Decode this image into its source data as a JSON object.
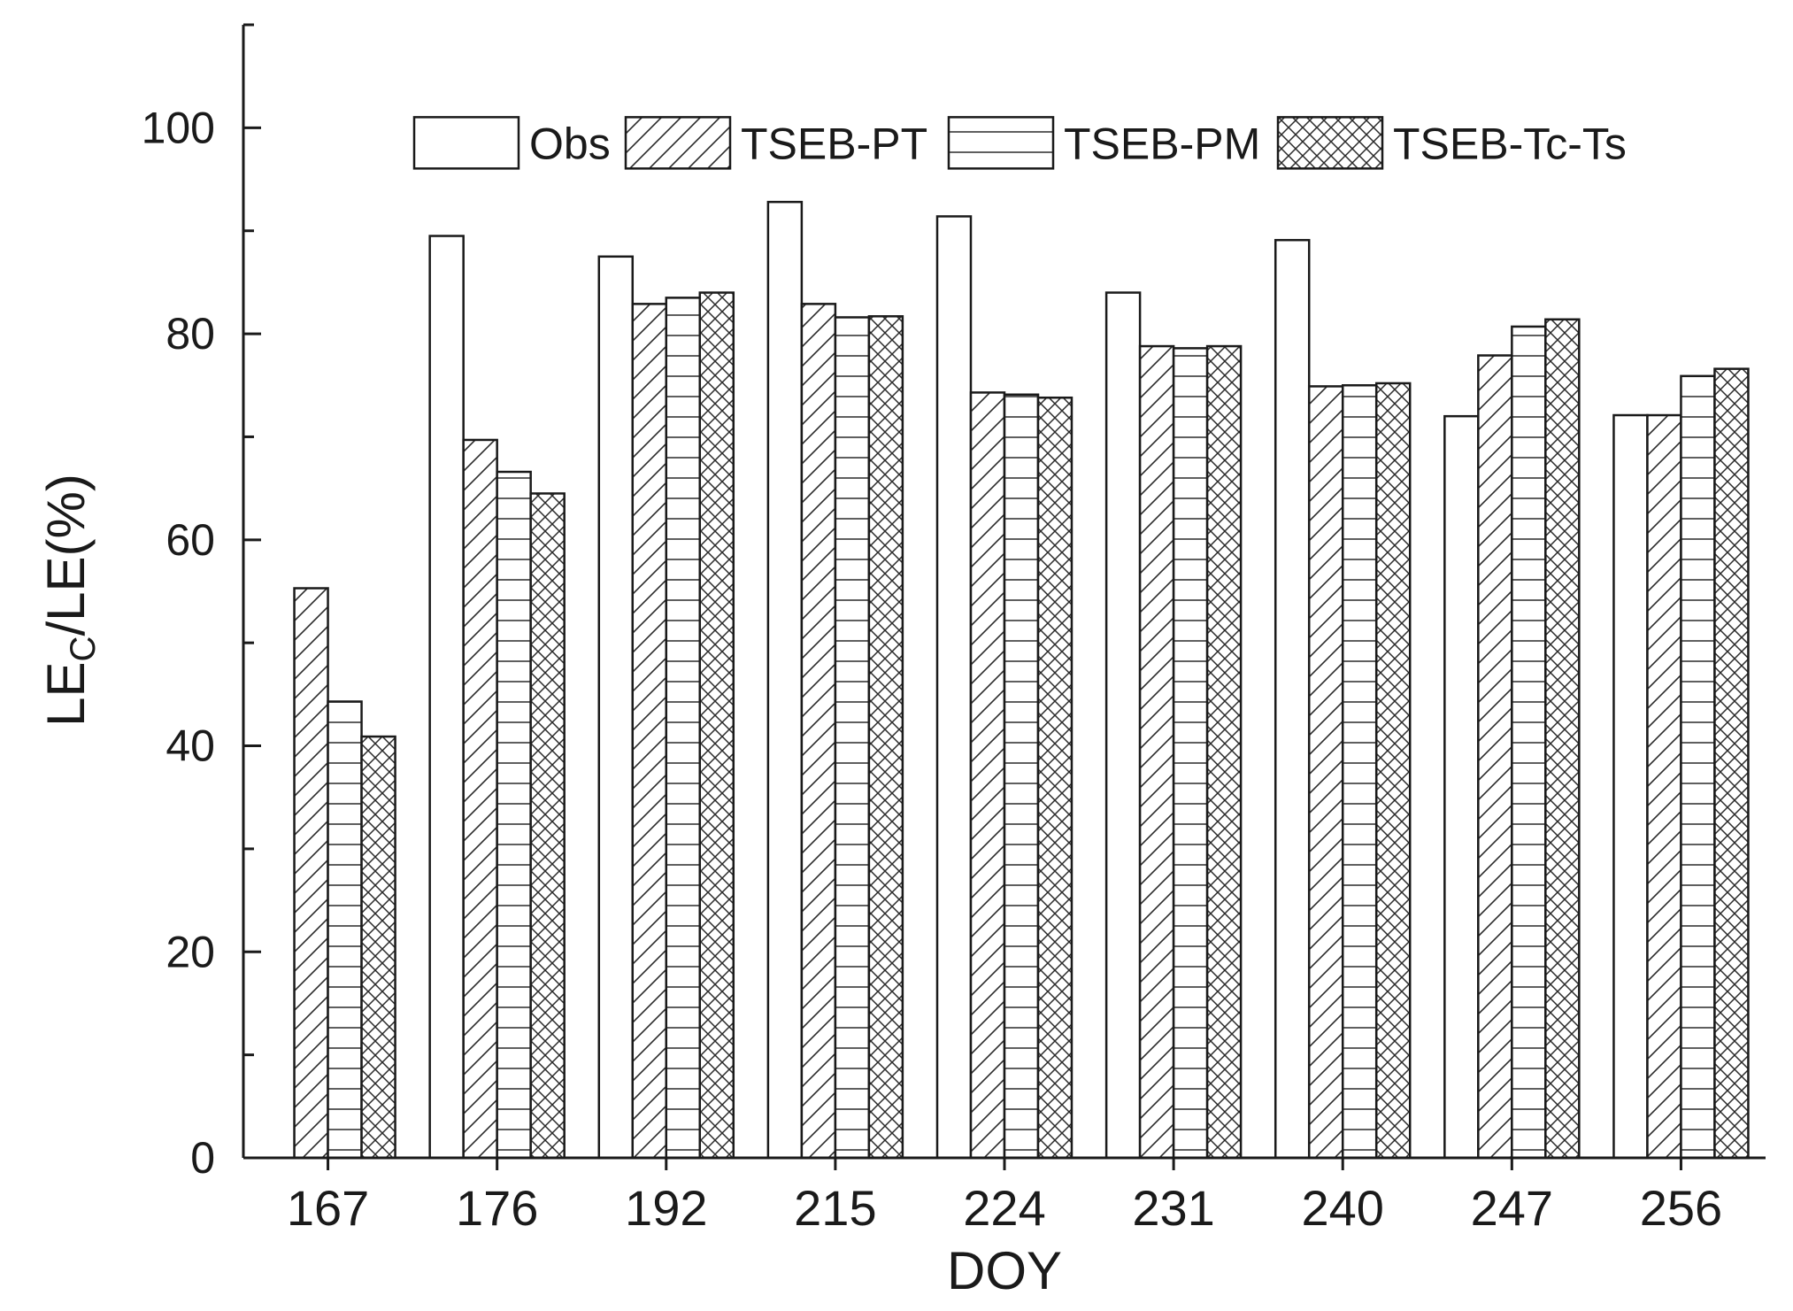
{
  "chart_data": {
    "type": "bar",
    "title": "",
    "xlabel": "DOY",
    "ylabel": {
      "main": "LE",
      "subscript": "C",
      "rest": "/LE(%)"
    },
    "ylim": [
      0,
      110
    ],
    "yticks": [
      0,
      20,
      40,
      60,
      80,
      100
    ],
    "categories": [
      "167",
      "176",
      "192",
      "215",
      "224",
      "231",
      "240",
      "247",
      "256"
    ],
    "series": [
      {
        "name": "Obs",
        "pattern": "none",
        "values": [
          null,
          89.5,
          87.5,
          92.8,
          91.4,
          84.0,
          89.1,
          72.0,
          72.1
        ]
      },
      {
        "name": "TSEB-PT",
        "pattern": "diagonal",
        "values": [
          55.3,
          69.7,
          82.9,
          82.9,
          74.3,
          78.8,
          74.9,
          77.9,
          72.1
        ]
      },
      {
        "name": "TSEB-PM",
        "pattern": "horizontal",
        "values": [
          44.3,
          66.6,
          83.5,
          81.6,
          74.1,
          78.6,
          75.0,
          80.7,
          75.9
        ]
      },
      {
        "name": "TSEB-Tc-Ts",
        "pattern": "crosshatch",
        "values": [
          40.9,
          64.5,
          84.0,
          81.7,
          73.8,
          78.8,
          75.2,
          81.4,
          76.6
        ]
      }
    ],
    "legend": {
      "placement": "top-right",
      "orientation": "horizontal"
    },
    "grid": false,
    "colors": {
      "stroke": "#1a1a1a",
      "background": "#ffffff"
    }
  }
}
